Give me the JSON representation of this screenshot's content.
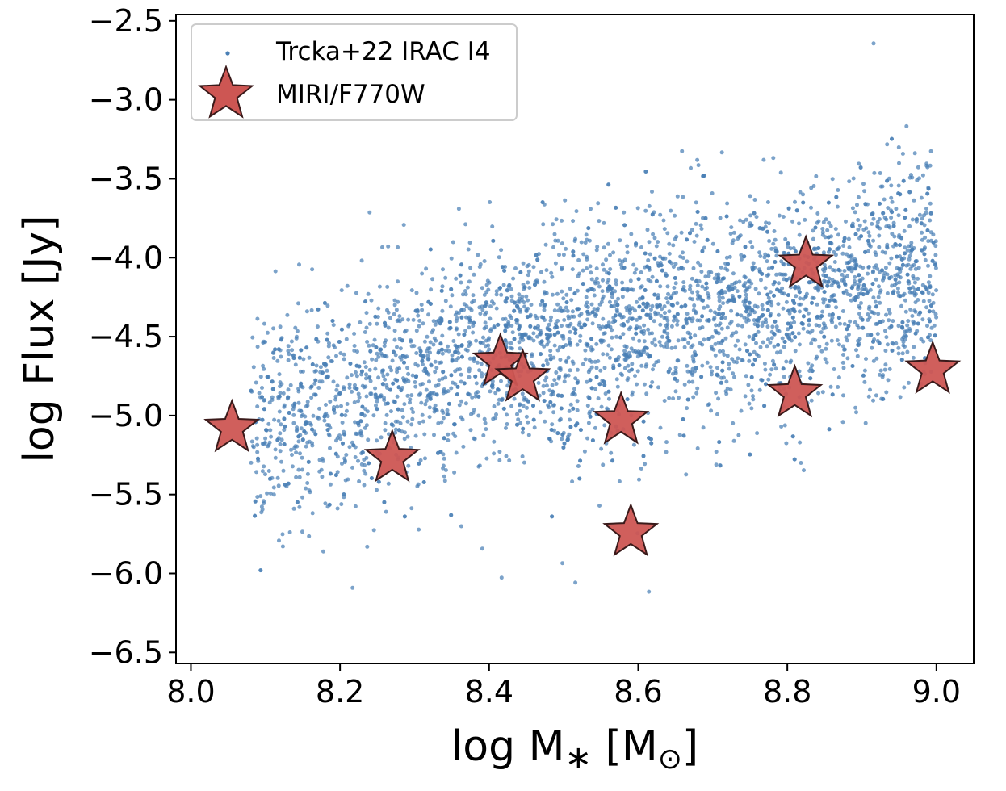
{
  "chart_data": {
    "type": "scatter",
    "xlabel": "log M",
    "xlabel_sub": "∗",
    "xlabel_unit_open": " [M",
    "xlabel_unit_sub": "⊙",
    "xlabel_unit_close": "]",
    "ylabel": "log Flux [Jy]",
    "xlim": [
      7.98,
      9.05
    ],
    "ylim": [
      -6.57,
      -2.46
    ],
    "xticks": [
      8.0,
      8.2,
      8.4,
      8.6,
      8.8,
      9.0
    ],
    "xtick_labels": [
      "8.0",
      "8.2",
      "8.4",
      "8.6",
      "8.8",
      "9.0"
    ],
    "yticks": [
      -2.5,
      -3.0,
      -3.5,
      -4.0,
      -4.5,
      -5.0,
      -5.5,
      -6.0,
      -6.5
    ],
    "ytick_labels": [
      "−2.5",
      "−3.0",
      "−3.5",
      "−4.0",
      "−4.5",
      "−5.0",
      "−5.5",
      "−6.0",
      "−6.5"
    ],
    "legend_position": "upper-left",
    "series": [
      {
        "name": "Trcka+22 IRAC I4",
        "marker": "dot",
        "color": "#4a7fb5",
        "count": 3800,
        "trend": {
          "x": [
            8.08,
            8.3,
            8.5,
            8.7,
            8.9,
            9.0
          ],
          "y": [
            -5.1,
            -4.7,
            -4.5,
            -4.35,
            -4.15,
            -4.1
          ]
        },
        "scatter_sigma_dex": 0.35,
        "x_range": [
          8.08,
          9.0
        ]
      },
      {
        "name": "MIRI/F770W",
        "marker": "star",
        "color": "#cd5653",
        "edgecolor": "#3a1a1a",
        "points": [
          {
            "x": 8.055,
            "y": -5.08
          },
          {
            "x": 8.27,
            "y": -5.27
          },
          {
            "x": 8.415,
            "y": -4.66
          },
          {
            "x": 8.445,
            "y": -4.76
          },
          {
            "x": 8.577,
            "y": -5.03
          },
          {
            "x": 8.59,
            "y": -5.74
          },
          {
            "x": 8.81,
            "y": -4.86
          },
          {
            "x": 8.825,
            "y": -4.04
          },
          {
            "x": 8.995,
            "y": -4.71
          }
        ]
      }
    ]
  }
}
